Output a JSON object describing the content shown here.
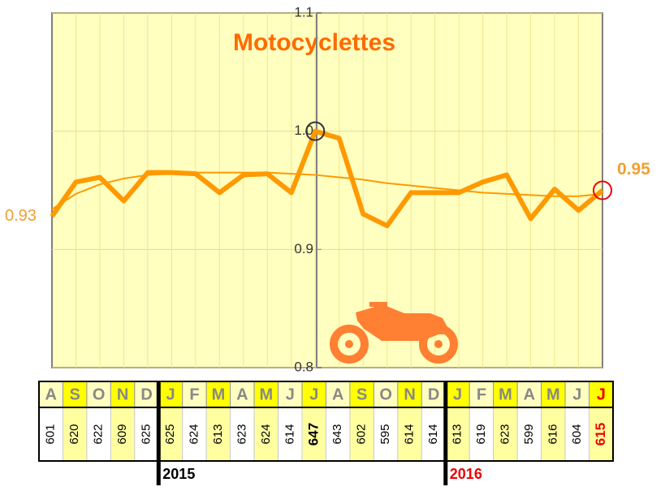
{
  "chart_data": {
    "type": "line",
    "title": "Motocyclettes",
    "categories": [
      "A",
      "S",
      "O",
      "N",
      "D",
      "J",
      "F",
      "M",
      "A",
      "M",
      "J",
      "J",
      "A",
      "S",
      "O",
      "N",
      "D",
      "J",
      "F",
      "M",
      "A",
      "M",
      "J",
      "J"
    ],
    "series": [
      {
        "color": "#ff9900",
        "values": [
          0.928,
          0.957,
          0.961,
          0.941,
          0.965,
          0.965,
          0.964,
          0.948,
          0.963,
          0.964,
          0.948,
          1.0,
          0.994,
          0.93,
          0.92,
          0.948,
          0.948,
          0.948,
          0.957,
          0.963,
          0.926,
          0.951,
          0.933,
          0.95
        ]
      },
      {
        "color": "#ff9900",
        "values": [
          0.934,
          0.947,
          0.955,
          0.96,
          0.963,
          0.964,
          0.965,
          0.965,
          0.965,
          0.965,
          0.964,
          0.963,
          0.961,
          0.959,
          0.956,
          0.954,
          0.952,
          0.95,
          0.948,
          0.947,
          0.946,
          0.945,
          0.945,
          0.947
        ]
      }
    ],
    "ylim": [
      0.8,
      1.1
    ],
    "yticks": [
      0.8,
      0.9,
      {
        "value": 1,
        "label": "1.0"
      },
      1.1
    ],
    "grid": true,
    "annotations": [
      "0.93",
      "0.95"
    ]
  },
  "table": {
    "counts": [
      "601",
      "620",
      "622",
      "609",
      "625",
      "625",
      "624",
      "613",
      "623",
      "624",
      "614",
      "647",
      "643",
      "602",
      "595",
      "614",
      "614",
      "613",
      "619",
      "623",
      "599",
      "616",
      "604",
      "615"
    ],
    "years": [
      "2015",
      "2016"
    ]
  }
}
